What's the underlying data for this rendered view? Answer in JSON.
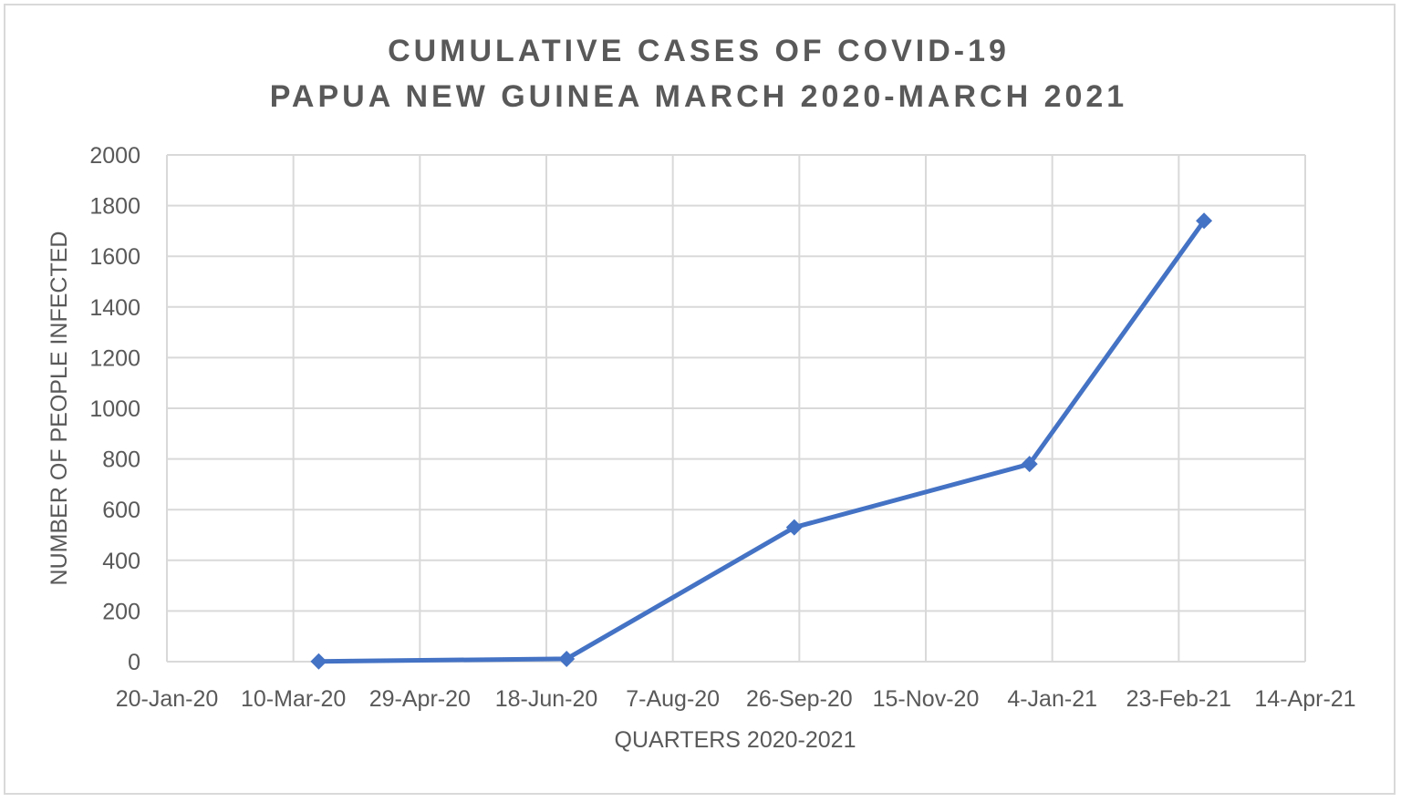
{
  "chart_data": {
    "type": "line",
    "title_lines": [
      "CUMULATIVE CASES OF COVID-19",
      "PAPUA NEW GUINEA MARCH 2020-MARCH 2021"
    ],
    "xlabel": "QUARTERS 2020-2021",
    "ylabel": "NUMBER OF PEOPLE INFECTED",
    "x_type": "date",
    "x_ticks": [
      "2020-01-20",
      "2020-03-10",
      "2020-04-29",
      "2020-06-18",
      "2020-08-07",
      "2020-09-26",
      "2020-11-15",
      "2021-01-04",
      "2021-02-23",
      "2021-04-14"
    ],
    "x_tick_labels": [
      "20-Jan-20",
      "10-Mar-20",
      "29-Apr-20",
      "18-Jun-20",
      "7-Aug-20",
      "26-Sep-20",
      "15-Nov-20",
      "4-Jan-21",
      "23-Feb-21",
      "14-Apr-21"
    ],
    "xlim": [
      "2020-01-20",
      "2021-04-14"
    ],
    "ylim": [
      0,
      2000
    ],
    "y_ticks": [
      0,
      200,
      400,
      600,
      800,
      1000,
      1200,
      1400,
      1600,
      1800,
      2000
    ],
    "grid": true,
    "series": [
      {
        "marker": "diamond",
        "color": "#4472c4",
        "points": [
          {
            "x": "2020-03-20",
            "y": 1
          },
          {
            "x": "2020-06-26",
            "y": 11
          },
          {
            "x": "2020-09-24",
            "y": 530
          },
          {
            "x": "2020-12-26",
            "y": 780
          },
          {
            "x": "2021-03-05",
            "y": 1740
          }
        ]
      }
    ]
  }
}
